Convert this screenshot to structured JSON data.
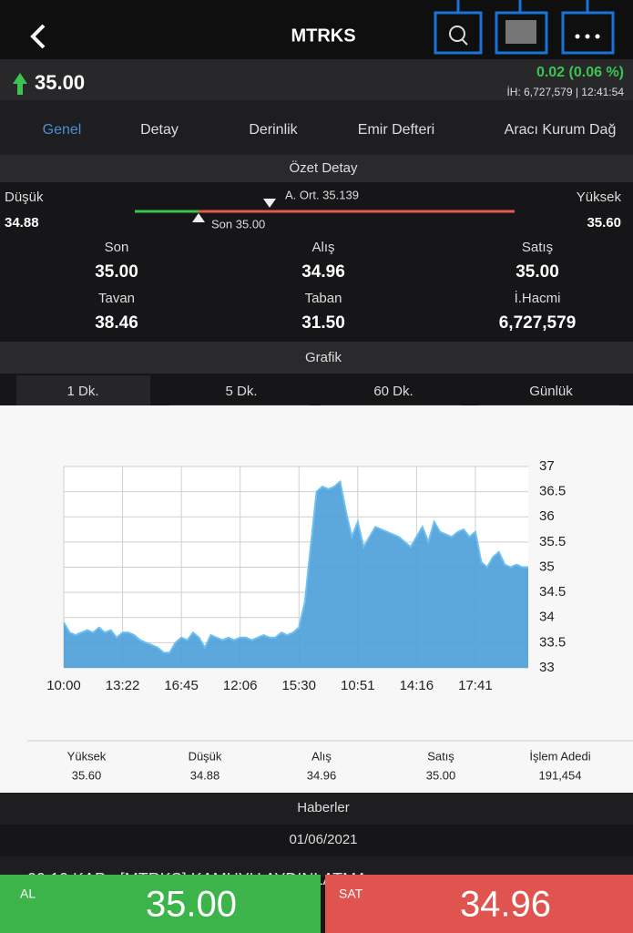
{
  "header": {
    "title": "MTRKS"
  },
  "quote": {
    "price": "35.00",
    "change": "0.02 (0.06 %)",
    "volume_line": "İH: 6,727,579 | 12:41:54"
  },
  "tabs": [
    "Genel",
    "Detay",
    "Derinlik",
    "Emir Defteri",
    "Aracı Kurum Dağ"
  ],
  "summary": {
    "title": "Özet Detay",
    "low_label": "Düşük",
    "low": "34.88",
    "high_label": "Yüksek",
    "high": "35.60",
    "avg": "A. Ort. 35.139",
    "last": "Son 35.00",
    "cells": [
      {
        "label": "Son",
        "value": "35.00"
      },
      {
        "label": "Alış",
        "value": "34.96"
      },
      {
        "label": "Satış",
        "value": "35.00"
      },
      {
        "label": "Tavan",
        "value": "38.46"
      },
      {
        "label": "Taban",
        "value": "31.50"
      },
      {
        "label": "İ.Hacmi",
        "value": "6,727,579"
      }
    ]
  },
  "chart_section": "Grafik",
  "periods": [
    "1 Dk.",
    "5 Dk.",
    "60 Dk.",
    "Günlük"
  ],
  "chart_data": {
    "type": "area",
    "color": "#4a9fd8",
    "categories": [
      "10:00",
      null,
      null,
      null,
      null,
      null,
      null,
      null,
      null,
      null,
      "13:22",
      null,
      null,
      null,
      null,
      null,
      null,
      null,
      null,
      null,
      "16:45",
      null,
      null,
      null,
      null,
      null,
      null,
      null,
      null,
      null,
      "12:06",
      null,
      null,
      null,
      null,
      null,
      null,
      null,
      null,
      null,
      "15:30",
      null,
      null,
      null,
      null,
      null,
      null,
      null,
      null,
      null,
      "10:51",
      null,
      null,
      null,
      null,
      null,
      null,
      null,
      null,
      null,
      "14:16",
      null,
      null,
      null,
      null,
      null,
      null,
      null,
      null,
      null,
      "17:41",
      null,
      null,
      null,
      null,
      null,
      null,
      null,
      null,
      null
    ],
    "values": [
      33.9,
      33.7,
      33.65,
      33.7,
      33.75,
      33.7,
      33.8,
      33.7,
      33.75,
      33.6,
      33.7,
      33.7,
      33.65,
      33.55,
      33.5,
      33.45,
      33.4,
      33.3,
      33.3,
      33.5,
      33.6,
      33.55,
      33.7,
      33.6,
      33.4,
      33.65,
      33.6,
      33.55,
      33.6,
      33.55,
      33.6,
      33.6,
      33.55,
      33.6,
      33.65,
      33.6,
      33.6,
      33.7,
      33.65,
      33.7,
      33.8,
      34.3,
      35.4,
      36.5,
      36.6,
      36.55,
      36.6,
      36.7,
      36.1,
      35.6,
      35.9,
      35.4,
      35.6,
      35.8,
      35.75,
      35.7,
      35.65,
      35.6,
      35.5,
      35.4,
      35.6,
      35.8,
      35.5,
      35.9,
      35.7,
      35.65,
      35.6,
      35.7,
      35.75,
      35.6,
      35.7,
      35.1,
      35.0,
      35.2,
      35.3,
      35.05,
      35.0,
      35.05,
      35.0,
      35.0
    ],
    "ylim": [
      33,
      37
    ],
    "yticks": [
      33,
      33.5,
      34,
      34.5,
      35,
      35.5,
      36,
      36.5,
      37
    ],
    "grid": true
  },
  "stats": [
    {
      "label": "Yüksek",
      "value": "35.60"
    },
    {
      "label": "Düşük",
      "value": "34.88"
    },
    {
      "label": "Alış",
      "value": "34.96"
    },
    {
      "label": "Satış",
      "value": "35.00"
    },
    {
      "label": "İşlem Adedi",
      "value": "191,454"
    }
  ],
  "news": {
    "title": "Haberler",
    "date": "01/06/2021",
    "items": [
      "09:10 KAP - [MTRKS] KAMUYU AYDINLATMA"
    ]
  },
  "buttons": {
    "buy_label": "AL",
    "buy_price": "35.00",
    "sell_label": "SAT",
    "sell_price": "34.96"
  }
}
